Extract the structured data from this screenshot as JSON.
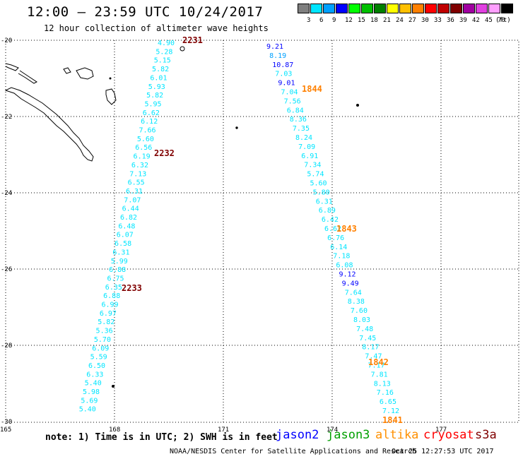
{
  "header": {
    "title": "12:00 – 23:59 UTC 10/24/2017",
    "subtitle": "12 hour collection of altimeter wave heights"
  },
  "color_scale": {
    "unit": "(ft)",
    "steps": [
      {
        "label": "3",
        "color": "#7f7f7f"
      },
      {
        "label": "6",
        "color": "#00e5ff"
      },
      {
        "label": "9",
        "color": "#00a0ff"
      },
      {
        "label": "12",
        "color": "#0000ff"
      },
      {
        "label": "15",
        "color": "#00ff00"
      },
      {
        "label": "18",
        "color": "#00c000"
      },
      {
        "label": "21",
        "color": "#008000"
      },
      {
        "label": "24",
        "color": "#ffff00"
      },
      {
        "label": "27",
        "color": "#ffc000"
      },
      {
        "label": "30",
        "color": "#ff8000"
      },
      {
        "label": "33",
        "color": "#ff0000"
      },
      {
        "label": "36",
        "color": "#c00000"
      },
      {
        "label": "39",
        "color": "#800000"
      },
      {
        "label": "42",
        "color": "#a000a0"
      },
      {
        "label": "45",
        "color": "#e040e0"
      },
      {
        "label": "70",
        "color": "#ff9fff"
      },
      {
        "label": "",
        "color": "#000000"
      }
    ]
  },
  "axes": {
    "lat_labels": [
      "-20",
      "-22",
      "-24",
      "-26",
      "-28",
      "-30"
    ],
    "lon_labels": [
      "165",
      "168",
      "171",
      "174",
      "177"
    ]
  },
  "tracks": [
    {
      "times": [
        {
          "label": "2231",
          "color": "#800000",
          "lat": -20.05
        },
        {
          "label": "2232",
          "color": "#800000",
          "lat": -23.0
        },
        {
          "label": "2233",
          "color": "#800000",
          "lat": -26.6
        }
      ],
      "points": [
        {
          "v": "4.90",
          "lat": -20.05,
          "lon": 169.28,
          "c": "#00e5ff"
        },
        {
          "v": "5.28",
          "lat": -20.22,
          "lon": 169.25,
          "c": "#00e5ff"
        },
        {
          "v": "5.15",
          "lat": -20.42,
          "lon": 169.2,
          "c": "#00e5ff"
        },
        {
          "v": "5.82",
          "lat": -20.62,
          "lon": 169.15,
          "c": "#00e5ff"
        },
        {
          "v": "6.01",
          "lat": -20.82,
          "lon": 169.1,
          "c": "#00e5ff"
        },
        {
          "v": "5.93",
          "lat": -21.02,
          "lon": 169.05,
          "c": "#00e5ff"
        },
        {
          "v": "5.82",
          "lat": -21.22,
          "lon": 168.99,
          "c": "#00e5ff"
        },
        {
          "v": "5.95",
          "lat": -21.42,
          "lon": 168.95,
          "c": "#00e5ff"
        },
        {
          "v": "6.62",
          "lat": -21.62,
          "lon": 168.9,
          "c": "#00e5ff"
        },
        {
          "v": "6.12",
          "lat": -21.82,
          "lon": 168.85,
          "c": "#00e5ff"
        },
        {
          "v": "7.66",
          "lat": -22.02,
          "lon": 168.8,
          "c": "#00e5ff"
        },
        {
          "v": "5.60",
          "lat": -22.22,
          "lon": 168.75,
          "c": "#00e5ff"
        },
        {
          "v": "6.56",
          "lat": -22.42,
          "lon": 168.7,
          "c": "#00e5ff"
        },
        {
          "v": "6.19",
          "lat": -22.62,
          "lon": 168.65,
          "c": "#00e5ff"
        },
        {
          "v": "6.32",
          "lat": -22.82,
          "lon": 168.6,
          "c": "#00e5ff"
        },
        {
          "v": "7.13",
          "lat": -23.02,
          "lon": 168.55,
          "c": "#00e5ff"
        },
        {
          "v": "6.55",
          "lat": -23.22,
          "lon": 168.5,
          "c": "#00e5ff"
        },
        {
          "v": "6.31",
          "lat": -23.42,
          "lon": 168.45,
          "c": "#00e5ff"
        },
        {
          "v": "7.07",
          "lat": -23.62,
          "lon": 168.4,
          "c": "#00e5ff"
        },
        {
          "v": "6.44",
          "lat": -23.82,
          "lon": 168.36,
          "c": "#00e5ff"
        },
        {
          "v": "6.82",
          "lat": -24.02,
          "lon": 168.31,
          "c": "#00e5ff"
        },
        {
          "v": "6.48",
          "lat": -24.22,
          "lon": 168.26,
          "c": "#00e5ff"
        },
        {
          "v": "6.07",
          "lat": -24.42,
          "lon": 168.21,
          "c": "#00e5ff"
        },
        {
          "v": "6.58",
          "lat": -24.62,
          "lon": 168.17,
          "c": "#00e5ff"
        },
        {
          "v": "6.31",
          "lat": -24.82,
          "lon": 168.12,
          "c": "#00e5ff"
        },
        {
          "v": "5.99",
          "lat": -25.02,
          "lon": 168.08,
          "c": "#00e5ff"
        },
        {
          "v": "6.88",
          "lat": -25.22,
          "lon": 168.04,
          "c": "#00e5ff"
        },
        {
          "v": "6.75",
          "lat": -25.42,
          "lon": 167.99,
          "c": "#00e5ff"
        },
        {
          "v": "6.35",
          "lat": -25.62,
          "lon": 167.95,
          "c": "#00e5ff"
        },
        {
          "v": "6.88",
          "lat": -25.82,
          "lon": 167.9,
          "c": "#00e5ff"
        },
        {
          "v": "6.99",
          "lat": -26.02,
          "lon": 167.86,
          "c": "#00e5ff"
        },
        {
          "v": "6.97",
          "lat": -26.22,
          "lon": 167.81,
          "c": "#00e5ff"
        },
        {
          "v": "5.82",
          "lat": -26.42,
          "lon": 167.77,
          "c": "#00e5ff"
        },
        {
          "v": "5.36",
          "lat": -26.62,
          "lon": 167.72,
          "c": "#00e5ff"
        },
        {
          "v": "5.70",
          "lat": -26.82,
          "lon": 167.68,
          "c": "#00e5ff"
        },
        {
          "v": "6.09",
          "lat": -27.02,
          "lon": 167.64,
          "c": "#00e5ff"
        },
        {
          "v": "5.59",
          "lat": -27.22,
          "lon": 167.59,
          "c": "#00e5ff"
        },
        {
          "v": "6.50",
          "lat": -27.42,
          "lon": 167.55,
          "c": "#00e5ff"
        },
        {
          "v": "6.33",
          "lat": -27.62,
          "lon": 167.51,
          "c": "#00e5ff"
        },
        {
          "v": "5.40",
          "lat": -27.82,
          "lon": 167.46,
          "c": "#00e5ff"
        },
        {
          "v": "5.98",
          "lat": -28.02,
          "lon": 167.42,
          "c": "#00e5ff"
        },
        {
          "v": "5.69",
          "lat": -28.22,
          "lon": 167.38,
          "c": "#00e5ff"
        },
        {
          "v": "5.40",
          "lat": -28.42,
          "lon": 167.33,
          "c": "#00e5ff"
        }
      ]
    },
    {
      "times": [
        {
          "label": "1844",
          "color": "#ff8000",
          "lat": -21.2
        },
        {
          "label": "1843",
          "color": "#ff8000",
          "lat": -25.0
        },
        {
          "label": "1842",
          "color": "#ff8000",
          "lat": -28.6
        },
        {
          "label": "1841",
          "color": "#ff8000",
          "lat": -29.9
        }
      ],
      "points": [
        {
          "v": "9.21",
          "lat": -20.05,
          "lon": 172.55,
          "c": "#0000ff"
        },
        {
          "v": "8.19",
          "lat": -20.26,
          "lon": 172.59,
          "c": "#00a0ff"
        },
        {
          "v": "10.87",
          "lat": -20.47,
          "lon": 172.62,
          "c": "#0000ff"
        },
        {
          "v": "7.03",
          "lat": -20.68,
          "lon": 172.66,
          "c": "#00e5ff"
        },
        {
          "v": "9.01",
          "lat": -20.89,
          "lon": 172.69,
          "c": "#0000ff"
        },
        {
          "v": "7.04",
          "lat": -21.1,
          "lon": 172.72,
          "c": "#00e5ff"
        },
        {
          "v": "7.56",
          "lat": -21.31,
          "lon": 172.76,
          "c": "#00e5ff"
        },
        {
          "v": "6.84",
          "lat": -21.52,
          "lon": 172.79,
          "c": "#00e5ff"
        },
        {
          "v": "8.36",
          "lat": -21.73,
          "lon": 172.83,
          "c": "#00e5ff"
        },
        {
          "v": "7.35",
          "lat": -21.94,
          "lon": 172.86,
          "c": "#00e5ff"
        },
        {
          "v": "8.24",
          "lat": -22.15,
          "lon": 172.89,
          "c": "#00e5ff"
        },
        {
          "v": "7.09",
          "lat": -22.36,
          "lon": 172.93,
          "c": "#00e5ff"
        },
        {
          "v": "6.91",
          "lat": -22.57,
          "lon": 172.96,
          "c": "#00e5ff"
        },
        {
          "v": "7.34",
          "lat": -22.78,
          "lon": 173.0,
          "c": "#00e5ff"
        },
        {
          "v": "5.74",
          "lat": -22.99,
          "lon": 173.03,
          "c": "#00e5ff"
        },
        {
          "v": "5.60",
          "lat": -23.2,
          "lon": 173.06,
          "c": "#00e5ff"
        },
        {
          "v": "5.80",
          "lat": -23.41,
          "lon": 173.1,
          "c": "#00e5ff"
        },
        {
          "v": "6.31",
          "lat": -23.62,
          "lon": 173.13,
          "c": "#00e5ff"
        },
        {
          "v": "6.89",
          "lat": -23.83,
          "lon": 173.17,
          "c": "#00e5ff"
        },
        {
          "v": "6.42",
          "lat": -24.04,
          "lon": 173.2,
          "c": "#00e5ff"
        },
        {
          "v": "6.62",
          "lat": -24.25,
          "lon": 173.23,
          "c": "#00e5ff"
        },
        {
          "v": "6.76",
          "lat": -24.46,
          "lon": 173.27,
          "c": "#00e5ff"
        },
        {
          "v": "6.14",
          "lat": -24.67,
          "lon": 173.3,
          "c": "#00e5ff"
        },
        {
          "v": "7.18",
          "lat": -24.88,
          "lon": 173.34,
          "c": "#00e5ff"
        },
        {
          "v": "6.08",
          "lat": -25.09,
          "lon": 173.37,
          "c": "#00e5ff"
        },
        {
          "v": "9.12",
          "lat": -25.3,
          "lon": 173.4,
          "c": "#0000ff"
        },
        {
          "v": "9.49",
          "lat": -25.51,
          "lon": 173.44,
          "c": "#0000ff"
        },
        {
          "v": "7.64",
          "lat": -25.72,
          "lon": 173.47,
          "c": "#00e5ff"
        },
        {
          "v": "8.38",
          "lat": -25.93,
          "lon": 173.51,
          "c": "#00e5ff"
        },
        {
          "v": "7.60",
          "lat": -26.14,
          "lon": 173.54,
          "c": "#00e5ff"
        },
        {
          "v": "8.03",
          "lat": -26.35,
          "lon": 173.57,
          "c": "#00e5ff"
        },
        {
          "v": "7.48",
          "lat": -26.56,
          "lon": 173.61,
          "c": "#00e5ff"
        },
        {
          "v": "7.45",
          "lat": -26.77,
          "lon": 173.64,
          "c": "#00e5ff"
        },
        {
          "v": "8.17",
          "lat": -26.98,
          "lon": 173.68,
          "c": "#00e5ff"
        },
        {
          "v": "7.47",
          "lat": -27.19,
          "lon": 173.71,
          "c": "#00e5ff"
        },
        {
          "v": "7.17",
          "lat": -27.4,
          "lon": 173.74,
          "c": "#00e5ff"
        },
        {
          "v": "7.81",
          "lat": -27.61,
          "lon": 173.78,
          "c": "#00e5ff"
        },
        {
          "v": "8.13",
          "lat": -27.82,
          "lon": 173.81,
          "c": "#00e5ff"
        },
        {
          "v": "7.16",
          "lat": -28.03,
          "lon": 173.85,
          "c": "#00e5ff"
        },
        {
          "v": "6.65",
          "lat": -28.24,
          "lon": 173.88,
          "c": "#00e5ff"
        },
        {
          "v": "7.12",
          "lat": -28.45,
          "lon": 173.91,
          "c": "#00e5ff"
        }
      ]
    }
  ],
  "footer": {
    "note": "note: 1) Time is in UTC; 2) SWH is in feet",
    "legend": [
      {
        "label": "jason2",
        "color": "#0000ff"
      },
      {
        "label": "jason3",
        "color": "#00a000"
      },
      {
        "label": "altika",
        "color": "#ff9000"
      },
      {
        "label": "cryosat",
        "color": "#ff0000"
      },
      {
        "label": "s3a",
        "color": "#800000"
      }
    ],
    "credit": "NOAA/NESDIS Center for Satellite Applications and Research",
    "stamp": "Oct 25 12:27:53 UTC 2017"
  }
}
